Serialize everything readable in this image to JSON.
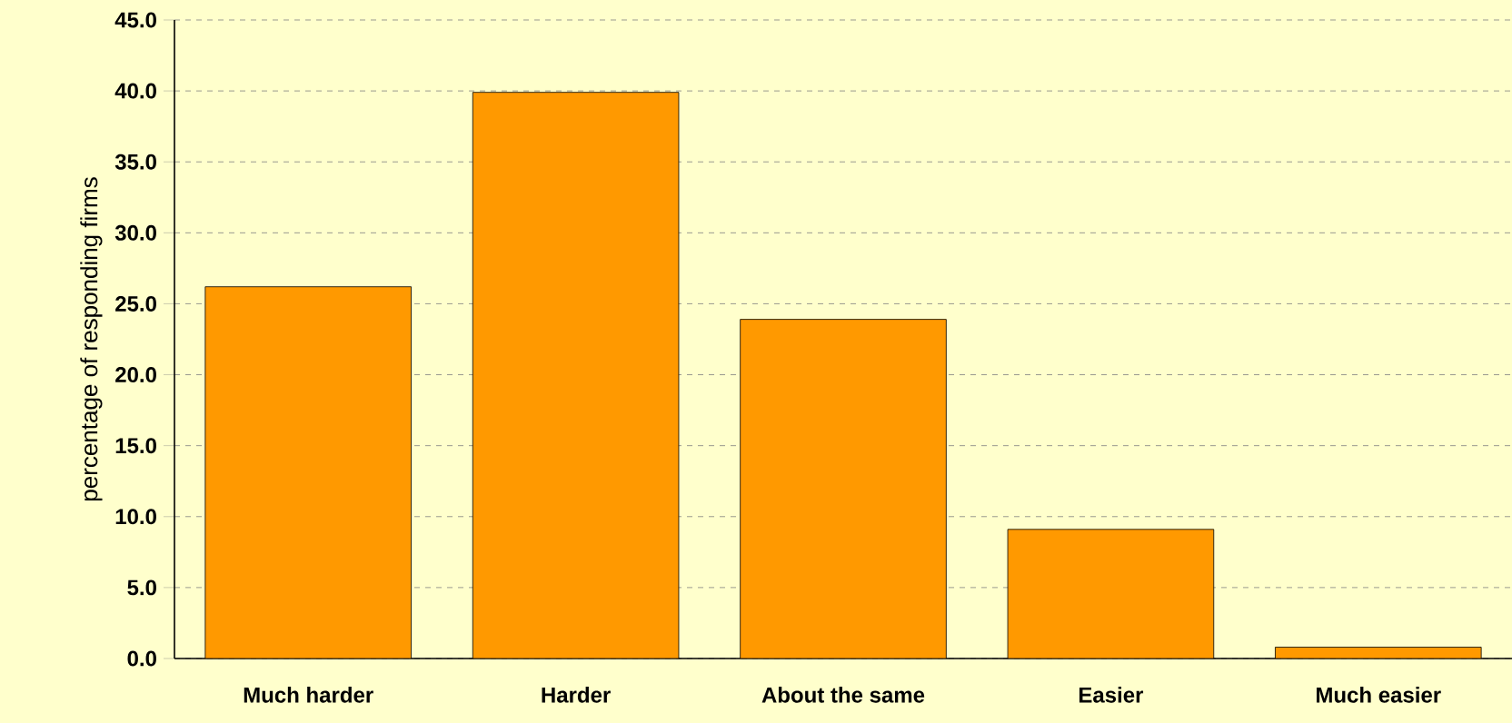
{
  "chart_data": {
    "type": "bar",
    "ylabel": "percentage of responding firms",
    "categories": [
      "Much harder",
      "Harder",
      "About the same",
      "Easier",
      "Much easier"
    ],
    "values": [
      26.2,
      39.9,
      23.9,
      9.1,
      0.8
    ],
    "color": "#ff9900",
    "ylim": [
      0,
      45
    ],
    "yticks": [
      {
        "value": 0,
        "label": "0.0"
      },
      {
        "value": 5,
        "label": "5.0"
      },
      {
        "value": 10,
        "label": "10.0"
      },
      {
        "value": 15,
        "label": "15.0"
      },
      {
        "value": 20,
        "label": "20.0"
      },
      {
        "value": 25,
        "label": "25.0"
      },
      {
        "value": 30,
        "label": "30.0"
      },
      {
        "value": 35,
        "label": "35.0"
      },
      {
        "value": 40,
        "label": "40.0"
      },
      {
        "value": 45,
        "label": "45.0"
      }
    ],
    "grid": "y"
  }
}
